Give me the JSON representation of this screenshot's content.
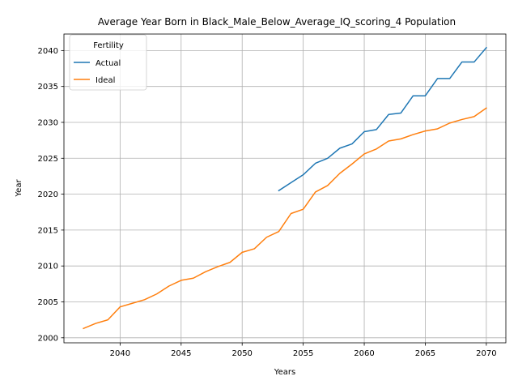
{
  "chart_data": {
    "type": "line",
    "title": "Average Year Born in Black_Male_Below_Average_IQ_scoring_4 Population",
    "xlabel": "Years",
    "ylabel": "Year",
    "xlim": [
      2035.4,
      2071.6
    ],
    "ylim": [
      1999.3,
      2042.3
    ],
    "xticks": [
      2040,
      2045,
      2050,
      2055,
      2060,
      2065,
      2070
    ],
    "yticks": [
      2000,
      2005,
      2010,
      2015,
      2020,
      2025,
      2030,
      2035,
      2040
    ],
    "grid": true,
    "legend": {
      "title": "Fertility",
      "placement": "top-left"
    },
    "series": [
      {
        "name": "Actual",
        "color": "#1f77b4",
        "x": [
          2053,
          2054,
          2055,
          2056,
          2057,
          2058,
          2059,
          2060,
          2061,
          2062,
          2063,
          2064,
          2065,
          2066,
          2067,
          2068,
          2069,
          2070
        ],
        "values": [
          2020.5,
          2021.6,
          2022.7,
          2024.3,
          2025.0,
          2026.4,
          2027.0,
          2028.7,
          2029.0,
          2031.1,
          2031.3,
          2033.7,
          2033.7,
          2036.1,
          2036.1,
          2038.4,
          2038.4,
          2040.4
        ]
      },
      {
        "name": "Ideal",
        "color": "#ff7f0e",
        "x": [
          2037,
          2038,
          2039,
          2040,
          2041,
          2042,
          2043,
          2044,
          2045,
          2046,
          2047,
          2048,
          2049,
          2050,
          2051,
          2052,
          2053,
          2054,
          2055,
          2056,
          2057,
          2058,
          2059,
          2060,
          2061,
          2062,
          2063,
          2064,
          2065,
          2066,
          2067,
          2068,
          2069,
          2070
        ],
        "values": [
          2001.3,
          2002.0,
          2002.5,
          2004.3,
          2004.8,
          2005.3,
          2006.1,
          2007.2,
          2008.0,
          2008.3,
          2009.2,
          2009.9,
          2010.5,
          2011.9,
          2012.4,
          2014.0,
          2014.8,
          2017.3,
          2017.9,
          2020.3,
          2021.2,
          2022.9,
          2024.2,
          2025.6,
          2026.3,
          2027.4,
          2027.7,
          2028.3,
          2028.8,
          2029.1,
          2029.9,
          2030.4,
          2030.8,
          2032.0
        ]
      }
    ]
  }
}
